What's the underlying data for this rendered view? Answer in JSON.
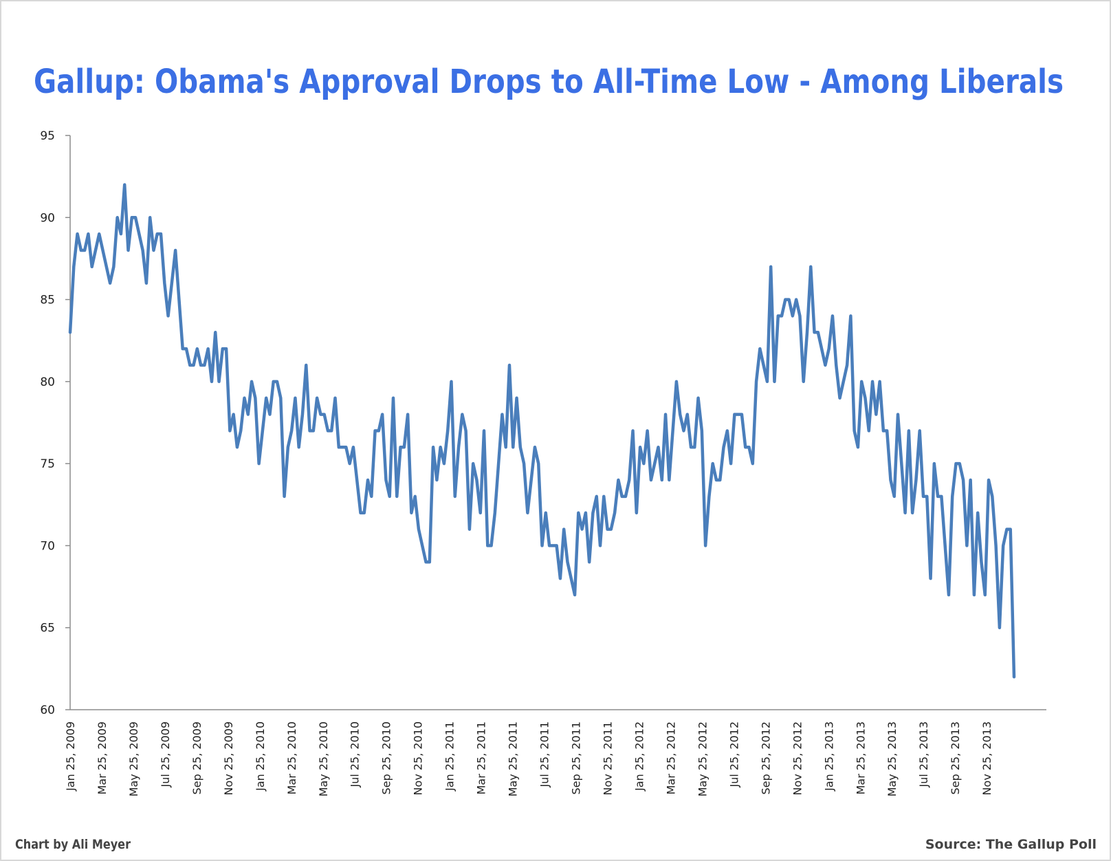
{
  "chart_data": {
    "type": "line",
    "title": "Gallup: Obama's Approval Drops to All-Time Low - Among Liberals",
    "xlabel": "",
    "ylabel": "",
    "ylim": [
      60,
      95
    ],
    "yticks": [
      60,
      65,
      70,
      75,
      80,
      85,
      90,
      95
    ],
    "xticks": [
      "Jan 25, 2009",
      "Mar 25, 2009",
      "May 25, 2009",
      "Jul 25, 2009",
      "Sep 25, 2009",
      "Nov 25, 2009",
      "Jan 25, 2010",
      "Mar 25, 2010",
      "May 25, 2010",
      "Jul 25, 2010",
      "Sep 25, 2010",
      "Nov 25, 2010",
      "Jan 25, 2011",
      "Mar 25, 2011",
      "May 25, 2011",
      "Jul 25, 2011",
      "Sep 25, 2011",
      "Nov 25, 2011",
      "Jan 25, 2012",
      "Mar 25, 2012",
      "May 25, 2012",
      "Jul 25, 2012",
      "Sep 25, 2012",
      "Nov 25, 2012",
      "Jan 25, 2013",
      "Mar 25, 2013",
      "May 25, 2013",
      "Jul 25, 2013",
      "Sep 25, 2013",
      "Nov 25, 2013"
    ],
    "grid": false,
    "line_color": "#4a7ebb",
    "values": [
      83,
      87,
      89,
      88,
      88,
      89,
      87,
      88,
      89,
      88,
      87,
      86,
      87,
      90,
      89,
      92,
      88,
      90,
      90,
      89,
      88,
      86,
      90,
      88,
      89,
      89,
      86,
      84,
      86,
      88,
      85,
      82,
      82,
      81,
      81,
      82,
      81,
      81,
      82,
      80,
      83,
      80,
      82,
      82,
      77,
      78,
      76,
      77,
      79,
      78,
      80,
      79,
      75,
      77,
      79,
      78,
      80,
      80,
      79,
      73,
      76,
      77,
      79,
      76,
      78,
      81,
      77,
      77,
      79,
      78,
      78,
      77,
      77,
      79,
      76,
      76,
      76,
      75,
      76,
      74,
      72,
      72,
      74,
      73,
      77,
      77,
      78,
      74,
      73,
      79,
      73,
      76,
      76,
      78,
      72,
      73,
      71,
      70,
      69,
      69,
      76,
      74,
      76,
      75,
      77,
      80,
      73,
      76,
      78,
      77,
      71,
      75,
      74,
      72,
      77,
      70,
      70,
      72,
      75,
      78,
      76,
      81,
      76,
      79,
      76,
      75,
      72,
      74,
      76,
      75,
      70,
      72,
      70,
      70,
      70,
      68,
      71,
      69,
      68,
      67,
      72,
      71,
      72,
      69,
      72,
      73,
      70,
      73,
      71,
      71,
      72,
      74,
      73,
      73,
      74,
      77,
      72,
      76,
      75,
      77,
      74,
      75,
      76,
      74,
      78,
      74,
      77,
      80,
      78,
      77,
      78,
      76,
      76,
      79,
      77,
      70,
      73,
      75,
      74,
      74,
      76,
      77,
      75,
      78,
      78,
      78,
      76,
      76,
      75,
      80,
      82,
      81,
      80,
      87,
      80,
      84,
      84,
      85,
      85,
      84,
      85,
      84,
      80,
      83,
      87,
      83,
      83,
      82,
      81,
      82,
      84,
      81,
      79,
      80,
      81,
      84,
      77,
      76,
      80,
      79,
      77,
      80,
      78,
      80,
      77,
      77,
      74,
      73,
      78,
      75,
      72,
      77,
      72,
      74,
      77,
      73,
      73,
      68,
      75,
      73,
      73,
      70,
      67,
      73,
      75,
      75,
      74,
      70,
      74,
      67,
      72,
      69,
      67,
      74,
      73,
      70,
      65,
      70,
      71,
      71,
      62
    ]
  },
  "footer": {
    "credit": "Chart by Ali Meyer",
    "source": "Source: The Gallup Poll"
  }
}
